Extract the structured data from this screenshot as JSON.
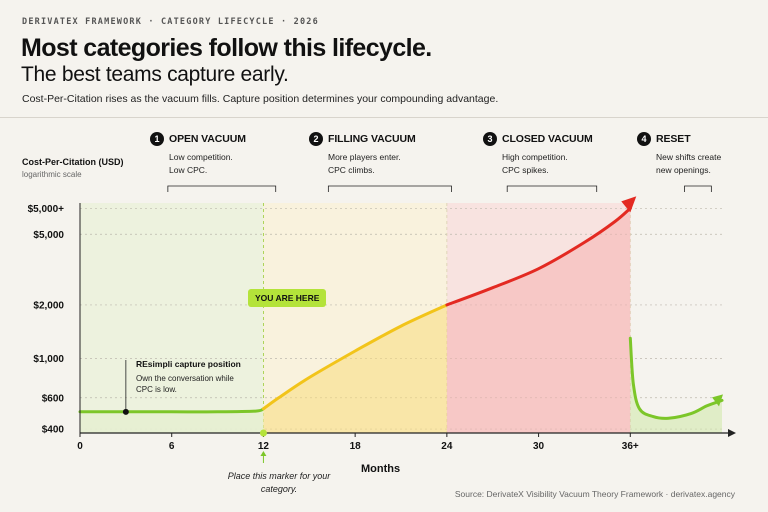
{
  "header": {
    "eyebrow": "DERIVATEX FRAMEWORK · CATEGORY LIFECYCLE · 2026",
    "title": "Most categories follow this lifecycle.",
    "subtitle": "The best teams capture early.",
    "description": "Cost-Per-Citation rises as the vacuum fills. Capture position determines your compounding advantage."
  },
  "phases": [
    {
      "num": "1",
      "name": "OPEN VACUUM",
      "desc1": "Low competition.",
      "desc2": "Low CPC."
    },
    {
      "num": "2",
      "name": "FILLING VACUUM",
      "desc1": "More players enter.",
      "desc2": "CPC climbs."
    },
    {
      "num": "3",
      "name": "CLOSED VACUUM",
      "desc1": "High competition.",
      "desc2": "CPC spikes."
    },
    {
      "num": "4",
      "name": "RESET",
      "desc1": "New shifts create",
      "desc2": "new openings."
    }
  ],
  "callouts": {
    "you_are_here": "YOU ARE HERE",
    "marker_note": "Place this marker for your category.",
    "annotation_title": "REsimpli capture position",
    "annotation_line1": "Own the conversation while",
    "annotation_line2": "CPC is low."
  },
  "source": "Source: DerivateX Visibility Vacuum Theory Framework  ·  derivatex.agency",
  "colors": {
    "background": "#f5f3ee",
    "open_fill": "#e6f0d2",
    "filling_fill": "#fbf0cf",
    "closed_fill": "#fad6d6",
    "green_line": "#7cc629",
    "yellow_line": "#f2c41a",
    "red_line": "#e32a22",
    "marker_green": "#b4e33a"
  },
  "chart_data": {
    "type": "line",
    "xlabel": "Months",
    "ylabel": "Cost-Per-Citation (USD)",
    "ylabel_note": "logarithmic scale",
    "yscale": "log",
    "x_ticks": [
      "0",
      "6",
      "12",
      "18",
      "24",
      "30",
      "36+"
    ],
    "x_tick_values": [
      0,
      6,
      12,
      18,
      24,
      30,
      36
    ],
    "y_ticks": [
      "$400",
      "$600",
      "$1,000",
      "$2,000",
      "$5,000",
      "$5,000+"
    ],
    "y_tick_values": [
      400,
      600,
      1000,
      2000,
      5000,
      7000
    ],
    "xlim": [
      0,
      42
    ],
    "ylim": [
      380,
      7500
    ],
    "grid": true,
    "phases_months": [
      [
        0,
        12
      ],
      [
        12,
        24
      ],
      [
        24,
        36
      ],
      [
        36,
        42
      ]
    ],
    "marker_month": 12,
    "annotation_month": 3,
    "series": [
      {
        "segment": "open",
        "color": "green",
        "x": [
          0,
          3,
          6,
          9,
          11.5,
          12
        ],
        "y": [
          500,
          500,
          500,
          500,
          505,
          520
        ]
      },
      {
        "segment": "filling",
        "color": "yellow",
        "x": [
          12,
          13,
          15,
          18,
          21,
          24
        ],
        "y": [
          520,
          600,
          780,
          1100,
          1520,
          2000
        ]
      },
      {
        "segment": "closed",
        "color": "red",
        "x": [
          24,
          27,
          30,
          33,
          35,
          36
        ],
        "y": [
          2000,
          2500,
          3200,
          4500,
          5900,
          7000
        ]
      },
      {
        "segment": "reset",
        "color": "green",
        "x": [
          36,
          36.2,
          36.6,
          37.5,
          38.5,
          40,
          41,
          42
        ],
        "y": [
          1300,
          720,
          520,
          470,
          460,
          490,
          540,
          580
        ]
      }
    ]
  }
}
